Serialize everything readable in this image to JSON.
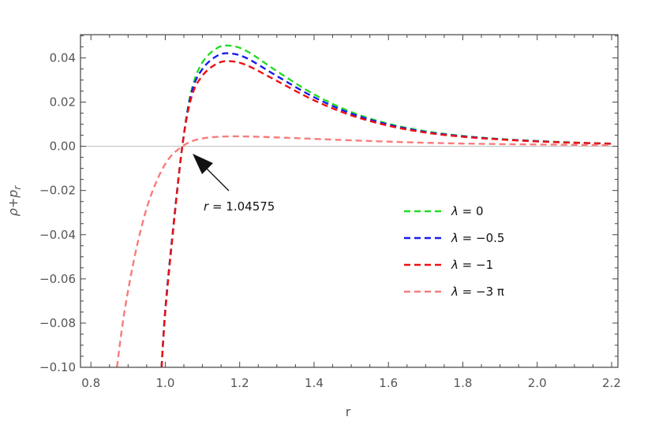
{
  "chart_data": {
    "type": "line",
    "title": "",
    "xlabel": "r",
    "ylabel": "ρ+p_r",
    "xlim": [
      0.772,
      2.217
    ],
    "ylim": [
      -0.1,
      0.0505
    ],
    "xticks": [
      "0.8",
      "1.0",
      "1.2",
      "1.4",
      "1.6",
      "1.8",
      "2.0",
      "2.2"
    ],
    "yticks": [
      "0.04",
      "0.02",
      "0.00",
      "-0.02",
      "-0.04",
      "-0.06",
      "-0.08",
      "-0.10"
    ],
    "xtick_values": [
      0.8,
      1.0,
      1.2,
      1.4,
      1.6,
      1.8,
      2.0,
      2.2
    ],
    "ytick_values": [
      0.04,
      0.02,
      0.0,
      -0.02,
      -0.04,
      -0.06,
      -0.08,
      -0.1
    ],
    "legend_position": "center-right",
    "annotation": {
      "text_var": "r",
      "text_value": "= 1.04575",
      "x": 1.04575,
      "y": 0.0
    },
    "series": [
      {
        "name": "λ = 0",
        "color": "#22dd22",
        "x": [
          0.99,
          1.0,
          1.02,
          1.04575,
          1.07,
          1.1,
          1.14,
          1.175,
          1.22,
          1.3,
          1.4,
          1.5,
          1.6,
          1.7,
          1.8,
          1.9,
          2.0,
          2.1,
          2.2
        ],
        "y": [
          -0.1,
          -0.074,
          -0.039,
          0.0,
          0.025,
          0.038,
          0.0445,
          0.0455,
          0.043,
          0.034,
          0.0235,
          0.0155,
          0.0102,
          0.0068,
          0.0047,
          0.0033,
          0.0024,
          0.0017,
          0.0012
        ]
      },
      {
        "name": "λ = −0.5",
        "color": "#1a1aee",
        "x": [
          0.99,
          1.0,
          1.02,
          1.04575,
          1.07,
          1.1,
          1.14,
          1.175,
          1.22,
          1.3,
          1.4,
          1.5,
          1.6,
          1.7,
          1.8,
          1.9,
          2.0,
          2.1,
          2.2
        ],
        "y": [
          -0.1,
          -0.074,
          -0.039,
          0.0,
          0.024,
          0.035,
          0.041,
          0.042,
          0.0398,
          0.0318,
          0.0222,
          0.0148,
          0.0098,
          0.0065,
          0.0045,
          0.0032,
          0.0023,
          0.0016,
          0.0012
        ]
      },
      {
        "name": "λ = −1",
        "color": "#ee1111",
        "x": [
          0.99,
          1.0,
          1.02,
          1.04575,
          1.07,
          1.1,
          1.14,
          1.175,
          1.22,
          1.3,
          1.4,
          1.5,
          1.6,
          1.7,
          1.8,
          1.9,
          2.0,
          2.1,
          2.2
        ],
        "y": [
          -0.1,
          -0.075,
          -0.04,
          0.0,
          0.022,
          0.032,
          0.0375,
          0.0385,
          0.0366,
          0.0296,
          0.0208,
          0.014,
          0.0093,
          0.0062,
          0.0043,
          0.0031,
          0.0022,
          0.0016,
          0.0011
        ]
      },
      {
        "name": "λ = −3 π",
        "color": "#f87c7c",
        "x": [
          0.87,
          0.89,
          0.92,
          0.95,
          0.98,
          1.01,
          1.04575,
          1.08,
          1.12,
          1.18,
          1.25,
          1.35,
          1.5,
          1.7,
          1.9,
          2.2
        ],
        "y": [
          -0.1,
          -0.075,
          -0.048,
          -0.028,
          -0.0145,
          -0.0055,
          0.0,
          0.0028,
          0.004,
          0.0045,
          0.0043,
          0.0037,
          0.0027,
          0.0016,
          0.001,
          0.0005
        ]
      }
    ]
  }
}
